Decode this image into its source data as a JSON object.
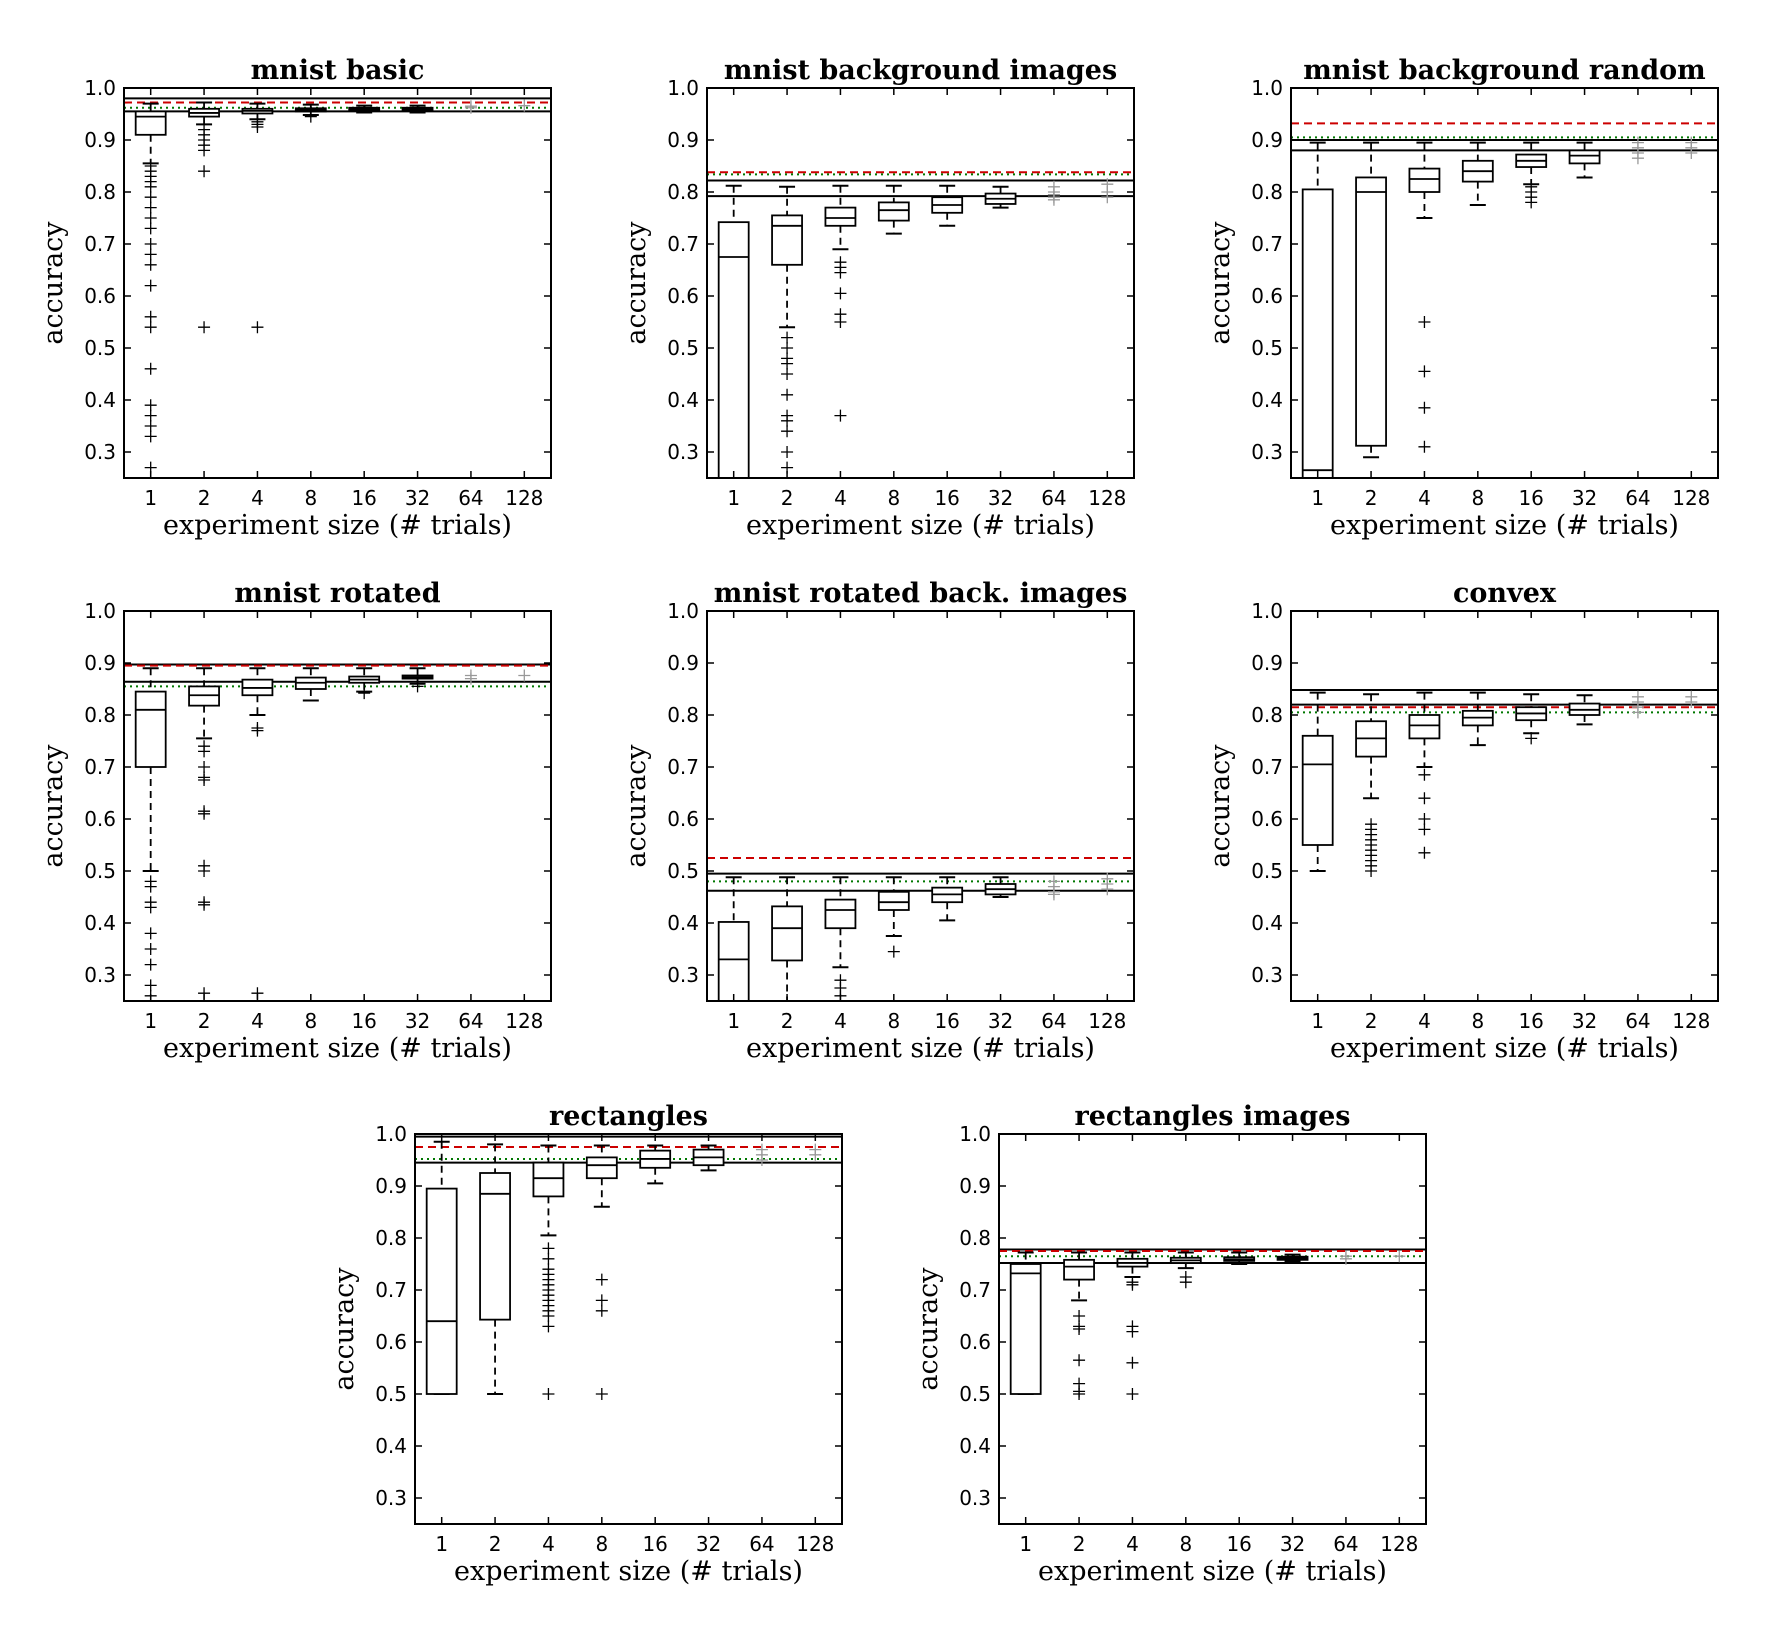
{
  "chart_data": [
    {
      "type": "box",
      "title": "mnist basic",
      "xlabel": "experiment size (# trials)",
      "ylabel": "accuracy",
      "categories": [
        "1",
        "2",
        "4",
        "8",
        "16",
        "32",
        "64",
        "128"
      ],
      "yticks": [
        "0.3",
        "0.4",
        "0.5",
        "0.6",
        "0.7",
        "0.8",
        "0.9",
        "1.0"
      ],
      "ylim": [
        0.25,
        1.0
      ],
      "hlines": {
        "solid": [
          0.98,
          0.955
        ],
        "red_dashed": 0.972,
        "green_dotted": 0.962
      },
      "boxes": [
        {
          "q1": 0.91,
          "median": 0.945,
          "q3": 0.955,
          "wlo": 0.855,
          "whi": 0.97,
          "outliers": [
            0.85,
            0.84,
            0.83,
            0.82,
            0.81,
            0.79,
            0.77,
            0.75,
            0.73,
            0.7,
            0.68,
            0.66,
            0.62,
            0.56,
            0.54,
            0.46,
            0.39,
            0.37,
            0.35,
            0.33,
            0.27
          ]
        },
        {
          "q1": 0.945,
          "median": 0.952,
          "q3": 0.96,
          "wlo": 0.93,
          "whi": 0.972,
          "outliers": [
            0.92,
            0.91,
            0.9,
            0.89,
            0.88,
            0.84,
            0.54
          ]
        },
        {
          "q1": 0.951,
          "median": 0.956,
          "q3": 0.96,
          "wlo": 0.94,
          "whi": 0.97,
          "outliers": [
            0.935,
            0.93,
            0.925,
            0.54
          ]
        },
        {
          "q1": 0.955,
          "median": 0.958,
          "q3": 0.961,
          "wlo": 0.948,
          "whi": 0.968,
          "outliers": [
            0.945
          ]
        },
        {
          "q1": 0.957,
          "median": 0.959,
          "q3": 0.962,
          "wlo": 0.953,
          "whi": 0.966,
          "outliers": []
        },
        {
          "q1": 0.957,
          "median": 0.959,
          "q3": 0.962,
          "wlo": 0.953,
          "whi": 0.966,
          "outliers": []
        },
        {
          "q1": null,
          "median": null,
          "q3": null,
          "wlo": null,
          "whi": null,
          "outliers": [
            0.965,
            0.962
          ]
        },
        {
          "q1": null,
          "median": null,
          "q3": null,
          "wlo": null,
          "whi": null,
          "outliers": [
            0.966
          ]
        }
      ]
    },
    {
      "type": "box",
      "title": "mnist background images",
      "xlabel": "experiment size (# trials)",
      "ylabel": "accuracy",
      "categories": [
        "1",
        "2",
        "4",
        "8",
        "16",
        "32",
        "64",
        "128"
      ],
      "yticks": [
        "0.3",
        "0.4",
        "0.5",
        "0.6",
        "0.7",
        "0.8",
        "0.9",
        "1.0"
      ],
      "ylim": [
        0.25,
        1.0
      ],
      "hlines": {
        "solid": [
          0.822,
          0.792
        ],
        "red_dashed": 0.838,
        "green_dotted": 0.834
      },
      "boxes": [
        {
          "q1": 0.25,
          "median": 0.675,
          "q3": 0.742,
          "wlo": 0.25,
          "whi": 0.812,
          "outliers": []
        },
        {
          "q1": 0.66,
          "median": 0.735,
          "q3": 0.755,
          "wlo": 0.54,
          "whi": 0.81,
          "outliers": [
            0.52,
            0.5,
            0.48,
            0.47,
            0.45,
            0.41,
            0.37,
            0.36,
            0.34,
            0.3,
            0.27
          ]
        },
        {
          "q1": 0.735,
          "median": 0.75,
          "q3": 0.77,
          "wlo": 0.69,
          "whi": 0.812,
          "outliers": [
            0.665,
            0.655,
            0.645,
            0.605,
            0.565,
            0.55,
            0.37
          ]
        },
        {
          "q1": 0.745,
          "median": 0.765,
          "q3": 0.78,
          "wlo": 0.72,
          "whi": 0.812,
          "outliers": []
        },
        {
          "q1": 0.76,
          "median": 0.775,
          "q3": 0.79,
          "wlo": 0.735,
          "whi": 0.812,
          "outliers": []
        },
        {
          "q1": 0.777,
          "median": 0.787,
          "q3": 0.797,
          "wlo": 0.77,
          "whi": 0.81,
          "outliers": []
        },
        {
          "q1": null,
          "median": null,
          "q3": null,
          "wlo": null,
          "whi": null,
          "outliers": [
            0.81,
            0.8,
            0.795,
            0.79,
            0.785
          ]
        },
        {
          "q1": null,
          "median": null,
          "q3": null,
          "wlo": null,
          "whi": null,
          "outliers": [
            0.815,
            0.8,
            0.79
          ]
        }
      ]
    },
    {
      "type": "box",
      "title": "mnist background random",
      "xlabel": "experiment size (# trials)",
      "ylabel": "accuracy",
      "categories": [
        "1",
        "2",
        "4",
        "8",
        "16",
        "32",
        "64",
        "128"
      ],
      "yticks": [
        "0.3",
        "0.4",
        "0.5",
        "0.6",
        "0.7",
        "0.8",
        "0.9",
        "1.0"
      ],
      "ylim": [
        0.25,
        1.0
      ],
      "hlines": {
        "solid": [
          0.9,
          0.88
        ],
        "red_dashed": 0.932,
        "green_dotted": 0.905
      },
      "boxes": [
        {
          "q1": 0.25,
          "median": 0.265,
          "q3": 0.805,
          "wlo": 0.25,
          "whi": 0.895,
          "outliers": []
        },
        {
          "q1": 0.312,
          "median": 0.8,
          "q3": 0.828,
          "wlo": 0.29,
          "whi": 0.895,
          "outliers": []
        },
        {
          "q1": 0.8,
          "median": 0.825,
          "q3": 0.845,
          "wlo": 0.75,
          "whi": 0.895,
          "outliers": [
            0.55,
            0.455,
            0.385,
            0.31
          ]
        },
        {
          "q1": 0.82,
          "median": 0.84,
          "q3": 0.86,
          "wlo": 0.775,
          "whi": 0.895,
          "outliers": []
        },
        {
          "q1": 0.848,
          "median": 0.86,
          "q3": 0.872,
          "wlo": 0.815,
          "whi": 0.895,
          "outliers": [
            0.81,
            0.8,
            0.79,
            0.78
          ]
        },
        {
          "q1": 0.855,
          "median": 0.87,
          "q3": 0.88,
          "wlo": 0.828,
          "whi": 0.895,
          "outliers": []
        },
        {
          "q1": null,
          "median": null,
          "q3": null,
          "wlo": null,
          "whi": null,
          "outliers": [
            0.895,
            0.885,
            0.875,
            0.865
          ]
        },
        {
          "q1": null,
          "median": null,
          "q3": null,
          "wlo": null,
          "whi": null,
          "outliers": [
            0.895,
            0.885,
            0.875
          ]
        }
      ]
    },
    {
      "type": "box",
      "title": "mnist rotated",
      "xlabel": "experiment size (# trials)",
      "ylabel": "accuracy",
      "categories": [
        "1",
        "2",
        "4",
        "8",
        "16",
        "32",
        "64",
        "128"
      ],
      "yticks": [
        "0.3",
        "0.4",
        "0.5",
        "0.6",
        "0.7",
        "0.8",
        "0.9",
        "1.0"
      ],
      "ylim": [
        0.25,
        1.0
      ],
      "hlines": {
        "solid": [
          0.897,
          0.864
        ],
        "red_dashed": 0.895,
        "green_dotted": 0.855
      },
      "boxes": [
        {
          "q1": 0.7,
          "median": 0.81,
          "q3": 0.845,
          "wlo": 0.5,
          "whi": 0.89,
          "outliers": [
            0.48,
            0.47,
            0.44,
            0.43,
            0.38,
            0.35,
            0.32,
            0.28,
            0.26
          ]
        },
        {
          "q1": 0.818,
          "median": 0.838,
          "q3": 0.855,
          "wlo": 0.755,
          "whi": 0.89,
          "outliers": [
            0.74,
            0.73,
            0.7,
            0.68,
            0.675,
            0.615,
            0.61,
            0.51,
            0.5,
            0.44,
            0.435,
            0.265
          ]
        },
        {
          "q1": 0.838,
          "median": 0.852,
          "q3": 0.868,
          "wlo": 0.8,
          "whi": 0.89,
          "outliers": [
            0.775,
            0.77,
            0.265
          ]
        },
        {
          "q1": 0.85,
          "median": 0.862,
          "q3": 0.872,
          "wlo": 0.828,
          "whi": 0.89,
          "outliers": []
        },
        {
          "q1": 0.862,
          "median": 0.868,
          "q3": 0.874,
          "wlo": 0.845,
          "whi": 0.89,
          "outliers": [
            0.842
          ]
        },
        {
          "q1": 0.87,
          "median": 0.873,
          "q3": 0.876,
          "wlo": 0.86,
          "whi": 0.89,
          "outliers": [
            0.855
          ]
        },
        {
          "q1": null,
          "median": null,
          "q3": null,
          "wlo": null,
          "whi": null,
          "outliers": [
            0.876,
            0.87
          ]
        },
        {
          "q1": null,
          "median": null,
          "q3": null,
          "wlo": null,
          "whi": null,
          "outliers": [
            0.876
          ]
        }
      ]
    },
    {
      "type": "box",
      "title": "mnist rotated back. images",
      "xlabel": "experiment size (# trials)",
      "ylabel": "accuracy",
      "categories": [
        "1",
        "2",
        "4",
        "8",
        "16",
        "32",
        "64",
        "128"
      ],
      "yticks": [
        "0.3",
        "0.4",
        "0.5",
        "0.6",
        "0.7",
        "0.8",
        "0.9",
        "1.0"
      ],
      "ylim": [
        0.25,
        1.0
      ],
      "hlines": {
        "solid": [
          0.495,
          0.462
        ],
        "red_dashed": 0.525,
        "green_dotted": 0.48
      },
      "boxes": [
        {
          "q1": 0.25,
          "median": 0.33,
          "q3": 0.402,
          "wlo": 0.25,
          "whi": 0.488,
          "outliers": []
        },
        {
          "q1": 0.328,
          "median": 0.39,
          "q3": 0.432,
          "wlo": 0.25,
          "whi": 0.488,
          "outliers": []
        },
        {
          "q1": 0.39,
          "median": 0.425,
          "q3": 0.445,
          "wlo": 0.315,
          "whi": 0.488,
          "outliers": [
            0.29,
            0.275,
            0.26
          ]
        },
        {
          "q1": 0.425,
          "median": 0.44,
          "q3": 0.46,
          "wlo": 0.375,
          "whi": 0.488,
          "outliers": [
            0.345
          ]
        },
        {
          "q1": 0.44,
          "median": 0.455,
          "q3": 0.468,
          "wlo": 0.405,
          "whi": 0.488,
          "outliers": []
        },
        {
          "q1": 0.455,
          "median": 0.465,
          "q3": 0.475,
          "wlo": 0.45,
          "whi": 0.488,
          "outliers": []
        },
        {
          "q1": null,
          "median": null,
          "q3": null,
          "wlo": null,
          "whi": null,
          "outliers": [
            0.48,
            0.47,
            0.46,
            0.455
          ]
        },
        {
          "q1": null,
          "median": null,
          "q3": null,
          "wlo": null,
          "whi": null,
          "outliers": [
            0.485,
            0.475,
            0.465
          ]
        }
      ]
    },
    {
      "type": "box",
      "title": "convex",
      "xlabel": "experiment size (# trials)",
      "ylabel": "accuracy",
      "categories": [
        "1",
        "2",
        "4",
        "8",
        "16",
        "32",
        "64",
        "128"
      ],
      "yticks": [
        "0.3",
        "0.4",
        "0.5",
        "0.6",
        "0.7",
        "0.8",
        "0.9",
        "1.0"
      ],
      "ylim": [
        0.25,
        1.0
      ],
      "hlines": {
        "solid": [
          0.848,
          0.82
        ],
        "red_dashed": 0.815,
        "green_dotted": 0.805
      },
      "boxes": [
        {
          "q1": 0.55,
          "median": 0.705,
          "q3": 0.76,
          "wlo": 0.5,
          "whi": 0.843,
          "outliers": []
        },
        {
          "q1": 0.72,
          "median": 0.755,
          "q3": 0.788,
          "wlo": 0.64,
          "whi": 0.84,
          "outliers": [
            0.59,
            0.58,
            0.57,
            0.56,
            0.55,
            0.54,
            0.53,
            0.52,
            0.51,
            0.5
          ]
        },
        {
          "q1": 0.755,
          "median": 0.78,
          "q3": 0.8,
          "wlo": 0.7,
          "whi": 0.843,
          "outliers": [
            0.685,
            0.64,
            0.6,
            0.58,
            0.535
          ]
        },
        {
          "q1": 0.78,
          "median": 0.795,
          "q3": 0.808,
          "wlo": 0.742,
          "whi": 0.843,
          "outliers": []
        },
        {
          "q1": 0.79,
          "median": 0.803,
          "q3": 0.815,
          "wlo": 0.765,
          "whi": 0.84,
          "outliers": [
            0.755
          ]
        },
        {
          "q1": 0.8,
          "median": 0.81,
          "q3": 0.822,
          "wlo": 0.782,
          "whi": 0.838,
          "outliers": []
        },
        {
          "q1": null,
          "median": null,
          "q3": null,
          "wlo": null,
          "whi": null,
          "outliers": [
            0.835,
            0.825,
            0.815,
            0.805
          ]
        },
        {
          "q1": null,
          "median": null,
          "q3": null,
          "wlo": null,
          "whi": null,
          "outliers": [
            0.835,
            0.825
          ]
        }
      ]
    },
    {
      "type": "box",
      "title": "rectangles",
      "xlabel": "experiment size (# trials)",
      "ylabel": "accuracy",
      "categories": [
        "1",
        "2",
        "4",
        "8",
        "16",
        "32",
        "64",
        "128"
      ],
      "yticks": [
        "0.3",
        "0.4",
        "0.5",
        "0.6",
        "0.7",
        "0.8",
        "0.9",
        "1.0"
      ],
      "ylim": [
        0.25,
        1.0
      ],
      "hlines": {
        "solid": [
          0.995,
          0.945
        ],
        "red_dashed": 0.975,
        "green_dotted": 0.952
      },
      "boxes": [
        {
          "q1": 0.5,
          "median": 0.64,
          "q3": 0.895,
          "wlo": 0.5,
          "whi": 0.985,
          "outliers": []
        },
        {
          "q1": 0.643,
          "median": 0.885,
          "q3": 0.925,
          "wlo": 0.5,
          "whi": 0.98,
          "outliers": []
        },
        {
          "q1": 0.88,
          "median": 0.915,
          "q3": 0.945,
          "wlo": 0.805,
          "whi": 0.978,
          "outliers": [
            0.78,
            0.76,
            0.74,
            0.73,
            0.72,
            0.71,
            0.7,
            0.69,
            0.68,
            0.67,
            0.66,
            0.65,
            0.63,
            0.5
          ]
        },
        {
          "q1": 0.915,
          "median": 0.94,
          "q3": 0.955,
          "wlo": 0.86,
          "whi": 0.978,
          "outliers": [
            0.72,
            0.68,
            0.66,
            0.5
          ]
        },
        {
          "q1": 0.935,
          "median": 0.952,
          "q3": 0.968,
          "wlo": 0.905,
          "whi": 0.978,
          "outliers": []
        },
        {
          "q1": 0.94,
          "median": 0.955,
          "q3": 0.97,
          "wlo": 0.93,
          "whi": 0.978,
          "outliers": []
        },
        {
          "q1": null,
          "median": null,
          "q3": null,
          "wlo": null,
          "whi": null,
          "outliers": [
            0.97,
            0.96,
            0.95
          ]
        },
        {
          "q1": null,
          "median": null,
          "q3": null,
          "wlo": null,
          "whi": null,
          "outliers": [
            0.97,
            0.96
          ]
        }
      ]
    },
    {
      "type": "box",
      "title": "rectangles images",
      "xlabel": "experiment size (# trials)",
      "ylabel": "accuracy",
      "categories": [
        "1",
        "2",
        "4",
        "8",
        "16",
        "32",
        "64",
        "128"
      ],
      "yticks": [
        "0.3",
        "0.4",
        "0.5",
        "0.6",
        "0.7",
        "0.8",
        "0.9",
        "1.0"
      ],
      "ylim": [
        0.25,
        1.0
      ],
      "hlines": {
        "solid": [
          0.778,
          0.752
        ],
        "red_dashed": 0.775,
        "green_dotted": 0.765
      },
      "boxes": [
        {
          "q1": 0.5,
          "median": 0.732,
          "q3": 0.75,
          "wlo": 0.5,
          "whi": 0.772,
          "outliers": []
        },
        {
          "q1": 0.72,
          "median": 0.745,
          "q3": 0.758,
          "wlo": 0.68,
          "whi": 0.772,
          "outliers": [
            0.65,
            0.63,
            0.625,
            0.565,
            0.52,
            0.505,
            0.5
          ]
        },
        {
          "q1": 0.745,
          "median": 0.752,
          "q3": 0.76,
          "wlo": 0.725,
          "whi": 0.772,
          "outliers": [
            0.715,
            0.71,
            0.63,
            0.62,
            0.56,
            0.5
          ]
        },
        {
          "q1": 0.752,
          "median": 0.757,
          "q3": 0.762,
          "wlo": 0.742,
          "whi": 0.772,
          "outliers": [
            0.725,
            0.715
          ]
        },
        {
          "q1": 0.756,
          "median": 0.759,
          "q3": 0.763,
          "wlo": 0.75,
          "whi": 0.772,
          "outliers": []
        },
        {
          "q1": 0.758,
          "median": 0.761,
          "q3": 0.764,
          "wlo": 0.755,
          "whi": 0.768,
          "outliers": []
        },
        {
          "q1": null,
          "median": null,
          "q3": null,
          "wlo": null,
          "whi": null,
          "outliers": [
            0.765,
            0.76
          ]
        },
        {
          "q1": null,
          "median": null,
          "q3": null,
          "wlo": null,
          "whi": null,
          "outliers": [
            0.765
          ]
        }
      ]
    }
  ]
}
